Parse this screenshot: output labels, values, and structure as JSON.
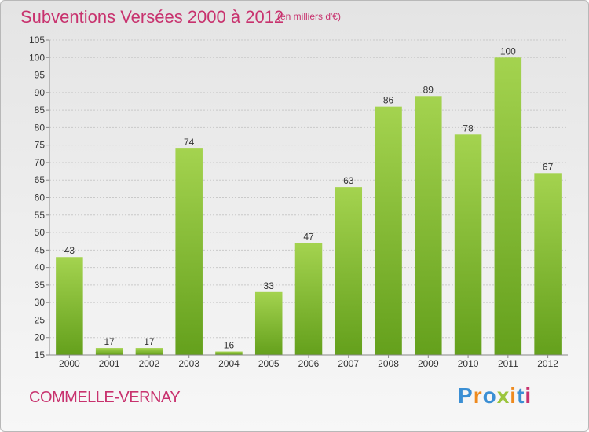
{
  "header": {
    "title": "Subventions Versées 2000 à 2012",
    "subtitle": "(en milliers d'€)"
  },
  "footer": {
    "commune": "COMMELLE-VERNAY",
    "logo": "Proxiti",
    "logo_colors": [
      "#3b8fd4",
      "#ee8a1e",
      "#3b8fd4",
      "#9bc53d",
      "#ee8a1e",
      "#3b8fd4",
      "#c8326e"
    ]
  },
  "chart_data": {
    "type": "bar",
    "title": "Subventions Versées 2000 à 2012",
    "subtitle": "(en milliers d'€)",
    "xlabel": "",
    "ylabel": "",
    "categories": [
      "2000",
      "2001",
      "2002",
      "2003",
      "2004",
      "2005",
      "2006",
      "2007",
      "2008",
      "2009",
      "2010",
      "2011",
      "2012"
    ],
    "values": [
      43,
      17,
      17,
      74,
      16,
      33,
      47,
      63,
      86,
      89,
      78,
      100,
      67
    ],
    "ylim": [
      15,
      105
    ],
    "yticks": [
      15,
      20,
      25,
      30,
      35,
      40,
      45,
      50,
      55,
      60,
      65,
      70,
      75,
      80,
      85,
      90,
      95,
      100,
      105
    ],
    "grid": true,
    "bar_color": "#7db32d",
    "bar_color_light": "#a4d34f"
  }
}
